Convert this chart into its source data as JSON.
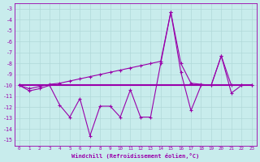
{
  "xlabel": "Windchill (Refroidissement éolien,°C)",
  "background_color": "#c8ecec",
  "grid_color": "#b0d8d8",
  "line_color": "#9900aa",
  "xlim": [
    -0.5,
    23.5
  ],
  "ylim": [
    -15.5,
    -2.5
  ],
  "yticks": [
    -3,
    -4,
    -5,
    -6,
    -7,
    -8,
    -9,
    -10,
    -11,
    -12,
    -13,
    -14,
    -15
  ],
  "xticks": [
    0,
    1,
    2,
    3,
    4,
    5,
    6,
    7,
    8,
    9,
    10,
    11,
    12,
    13,
    14,
    15,
    16,
    17,
    18,
    19,
    20,
    21,
    22,
    23
  ],
  "line1_x": [
    0,
    1,
    2,
    3,
    4,
    5,
    6,
    7,
    8,
    9,
    10,
    11,
    12,
    13,
    14,
    15,
    16,
    17,
    18,
    19,
    20,
    21,
    22,
    23
  ],
  "line1_y": [
    -10.0,
    -10.5,
    -10.3,
    -10.0,
    -11.8,
    -12.9,
    -11.2,
    -14.6,
    -11.9,
    -11.9,
    -12.9,
    -10.4,
    -12.9,
    -12.9,
    -8.0,
    -3.3,
    -8.8,
    -12.3,
    -10.0,
    -10.0,
    -7.3,
    -10.7,
    -10.0,
    -10.0
  ],
  "line2_x": [
    0,
    1,
    2,
    3,
    4,
    5,
    6,
    7,
    8,
    9,
    10,
    11,
    12,
    13,
    14,
    15,
    16,
    17,
    18,
    19,
    20,
    21,
    22,
    23
  ],
  "line2_y": [
    -10.0,
    -10.3,
    -10.1,
    -9.9,
    -9.8,
    -9.6,
    -9.4,
    -9.2,
    -9.0,
    -8.8,
    -8.6,
    -8.4,
    -8.2,
    -8.0,
    -7.8,
    -3.3,
    -8.0,
    -9.8,
    -9.9,
    -10.0,
    -7.3,
    -10.0,
    -10.0,
    -10.0
  ],
  "line3_x": [
    0,
    23
  ],
  "line3_y": [
    -10.0,
    -10.0
  ]
}
